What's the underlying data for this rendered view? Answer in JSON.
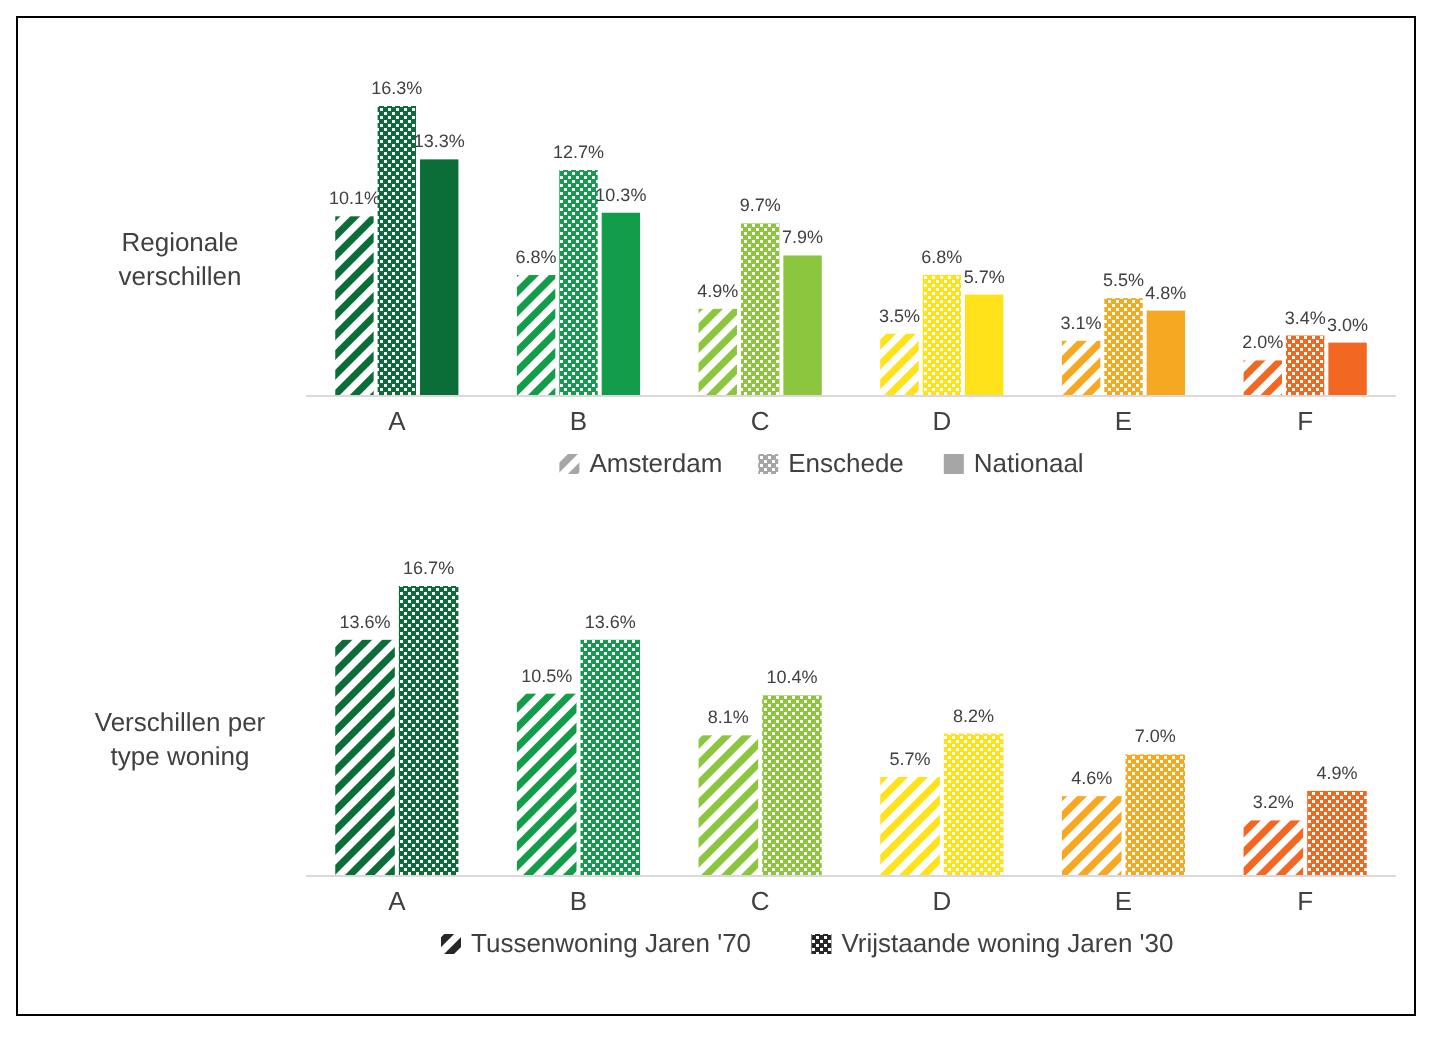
{
  "chart_data": [
    {
      "type": "bar",
      "ylabel": "Regionale verschillen",
      "categories": [
        "A",
        "B",
        "C",
        "D",
        "E",
        "F"
      ],
      "legend": "bottom",
      "series": [
        {
          "name": "Amsterdam",
          "color": "#a6a6a6",
          "colors": [
            "#0b6e38",
            "#139c4a",
            "#8cc63f",
            "#ffe21a",
            "#f7a823",
            "#f26722"
          ],
          "values": [
            10.1,
            6.8,
            4.9,
            3.5,
            3.1,
            2.0
          ],
          "value_labels": [
            "10.1%",
            "6.8%",
            "4.9%",
            "3.5%",
            "3.1%",
            "2.0%"
          ]
        },
        {
          "name": "Enschede",
          "color": "#a6a6a6",
          "colors": [
            "#0b6e38",
            "#139c4a",
            "#8cc63f",
            "#ffe21a",
            "#f7a823",
            "#f26722"
          ],
          "values": [
            16.3,
            12.7,
            9.7,
            6.8,
            5.5,
            3.4
          ],
          "value_labels": [
            "16.3%",
            "12.7%",
            "9.7%",
            "6.8%",
            "5.5%",
            "3.4%"
          ]
        },
        {
          "name": "Nationaal",
          "color": "#a6a6a6",
          "colors": [
            "#0b6e38",
            "#139c4a",
            "#8cc63f",
            "#ffe21a",
            "#f7a823",
            "#f26722"
          ],
          "values": [
            13.3,
            10.3,
            7.9,
            5.7,
            4.8,
            3.0
          ],
          "value_labels": [
            "13.3%",
            "10.3%",
            "7.9%",
            "5.7%",
            "4.8%",
            "3.0%"
          ]
        }
      ]
    },
    {
      "type": "bar",
      "ylabel": "Verschillen per type woning",
      "categories": [
        "A",
        "B",
        "C",
        "D",
        "E",
        "F"
      ],
      "legend": "bottom",
      "series": [
        {
          "name": "Tussenwoning Jaren '70",
          "color": "#262626",
          "colors": [
            "#0b6e38",
            "#139c4a",
            "#8cc63f",
            "#ffe21a",
            "#f7a823",
            "#f26722"
          ],
          "values": [
            13.6,
            10.5,
            8.1,
            5.7,
            4.6,
            3.2
          ],
          "value_labels": [
            "13.6%",
            "10.5%",
            "8.1%",
            "5.7%",
            "4.6%",
            "3.2%"
          ]
        },
        {
          "name": "Vrijstaande woning Jaren '30",
          "color": "#262626",
          "colors": [
            "#0b6e38",
            "#139c4a",
            "#8cc63f",
            "#ffe21a",
            "#f7a823",
            "#f26722"
          ],
          "values": [
            16.7,
            13.6,
            10.4,
            8.2,
            7.0,
            4.9
          ],
          "value_labels": [
            "16.7%",
            "13.6%",
            "10.4%",
            "8.2%",
            "7.0%",
            "4.9%"
          ]
        }
      ]
    }
  ]
}
